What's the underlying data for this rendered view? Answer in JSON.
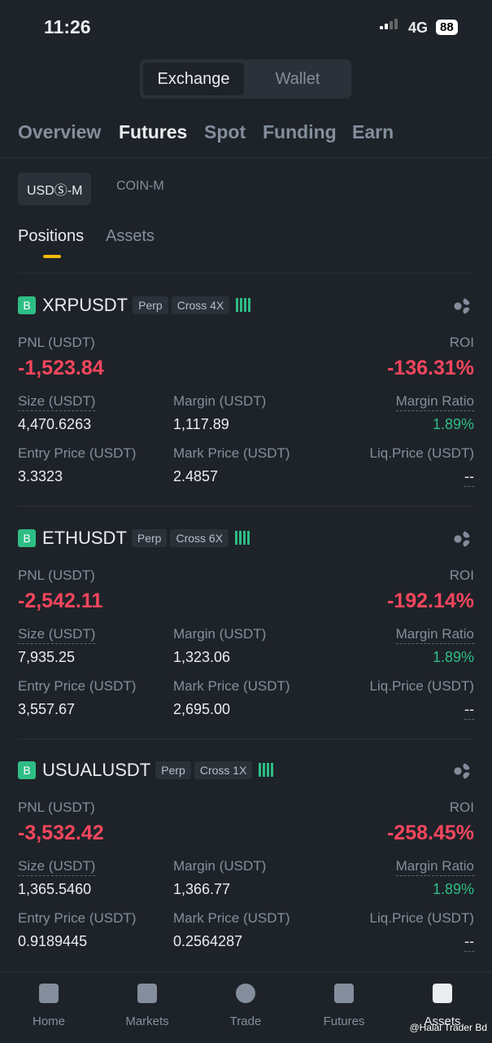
{
  "status": {
    "time": "11:26",
    "network": "4G",
    "battery": "88"
  },
  "toggle": [
    "Exchange",
    "Wallet"
  ],
  "tabs": [
    "Overview",
    "Futures",
    "Spot",
    "Funding",
    "Earn"
  ],
  "subtabs": [
    "USDⓈ-M",
    "COIN-M"
  ],
  "section_tabs": [
    "Positions",
    "Assets"
  ],
  "field_labels": {
    "pnl": "PNL (USDT)",
    "roi": "ROI",
    "size": "Size (USDT)",
    "margin": "Margin (USDT)",
    "ratio": "Margin Ratio",
    "entry": "Entry Price (USDT)",
    "mark": "Mark Price (USDT)",
    "liq": "Liq.Price (USDT)"
  },
  "positions": [
    {
      "badge": "B",
      "symbol": "XRPUSDT",
      "kind": "Perp",
      "mode": "Cross 4X",
      "pnl": "-1,523.84",
      "roi": "-136.31%",
      "size": "4,470.6263",
      "margin": "1,117.89",
      "ratio": "1.89%",
      "entry": "3.3323",
      "mark": "2.4857",
      "liq": "--"
    },
    {
      "badge": "B",
      "symbol": "ETHUSDT",
      "kind": "Perp",
      "mode": "Cross 6X",
      "pnl": "-2,542.11",
      "roi": "-192.14%",
      "size": "7,935.25",
      "margin": "1,323.06",
      "ratio": "1.89%",
      "entry": "3,557.67",
      "mark": "2,695.00",
      "liq": "--"
    },
    {
      "badge": "B",
      "symbol": "USUALUSDT",
      "kind": "Perp",
      "mode": "Cross 1X",
      "pnl": "-3,532.42",
      "roi": "-258.45%",
      "size": "1,365.5460",
      "margin": "1,366.77",
      "ratio": "1.89%",
      "entry": "0.9189445",
      "mark": "0.2564287",
      "liq": "--"
    }
  ],
  "nav": [
    "Home",
    "Markets",
    "Trade",
    "Futures",
    "Assets"
  ],
  "watermark": "@Halal Trader Bd"
}
